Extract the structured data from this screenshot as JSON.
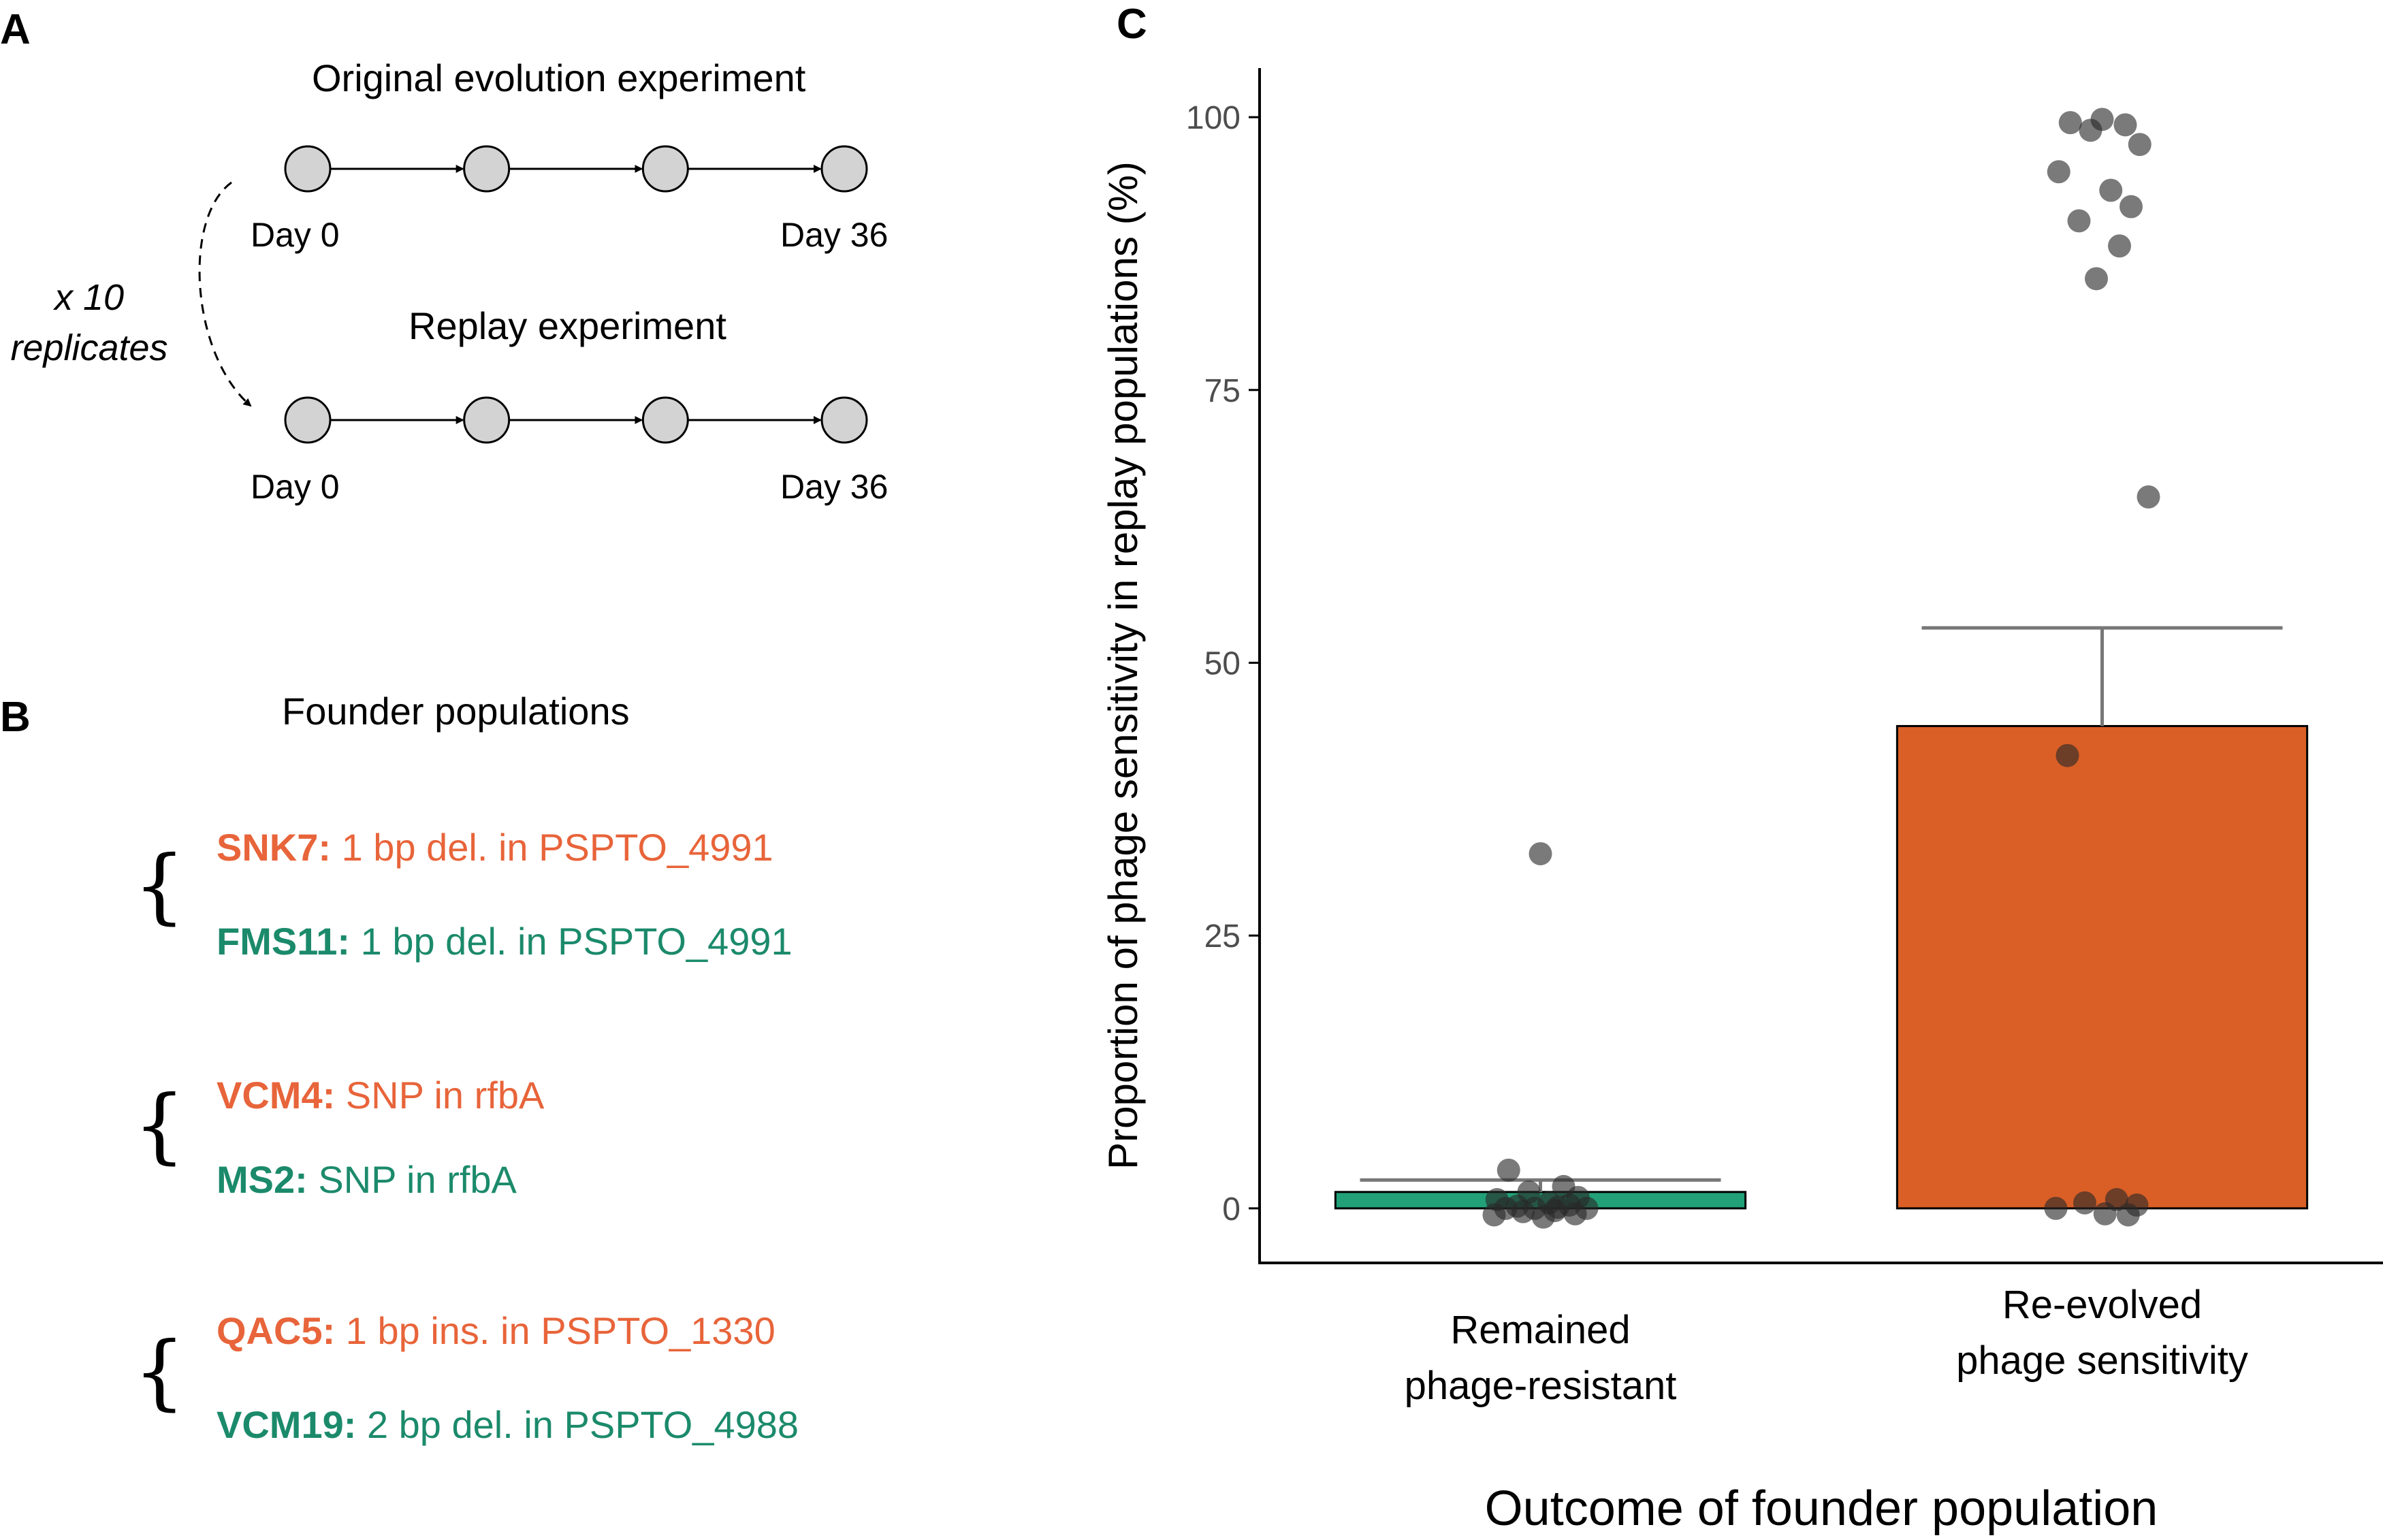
{
  "panels": {
    "a": {
      "letter": "A",
      "original_title": "Original evolution experiment",
      "replay_title": "Replay experiment",
      "replicates_line1": "x 10",
      "replicates_line2": "replicates",
      "start_label": "Day 0",
      "end_label": "Day 36",
      "timepoints_per_experiment": 4
    },
    "b": {
      "letter": "B",
      "title": "Founder populations",
      "groups": [
        [
          {
            "name": "SNK7:",
            "desc": "1 bp del. in PSPTO_4991",
            "color": "#e8643a"
          },
          {
            "name": "FMS11:",
            "desc": "1 bp del. in PSPTO_4991",
            "color": "#1b8a6b"
          }
        ],
        [
          {
            "name": "VCM4:",
            "desc": "SNP in rfbA",
            "color": "#e8643a"
          },
          {
            "name": "MS2:",
            "desc": "SNP in rfbA",
            "color": "#1b8a6b"
          }
        ],
        [
          {
            "name": "QAC5:",
            "desc": "1 bp ins. in PSPTO_1330",
            "color": "#e8643a"
          },
          {
            "name": "VCM19:",
            "desc": "2 bp del. in PSPTO_4988",
            "color": "#1b8a6b"
          }
        ]
      ]
    },
    "c": {
      "letter": "C"
    }
  },
  "chart_data": {
    "type": "bar",
    "categories": [
      "Remained\nphage-resistant",
      "Re-evolved\nphage sensitivity"
    ],
    "values": [
      1.5,
      44.2
    ],
    "error_upper": [
      2.6,
      53.2
    ],
    "bar_colors": [
      "#22a078",
      "#d95f26"
    ],
    "xlabel": "Outcome of founder population",
    "ylabel": "Proportion of phage sensitivity in replay populations (%)",
    "ylim": [
      -5,
      104.5
    ],
    "yticks": [
      0,
      25,
      50,
      75,
      100
    ],
    "grid": false,
    "points": [
      {
        "group": 0,
        "values": [
          32.5,
          3.5,
          2.0,
          1.5,
          1.0,
          0.8,
          0.5,
          0.3,
          0.2,
          0.1,
          0.0,
          0.0,
          0.0,
          -0.2,
          -0.3,
          -0.5,
          -0.6,
          -0.8
        ]
      },
      {
        "group": 1,
        "values": [
          99.8,
          99.5,
          99.3,
          98.8,
          97.5,
          95.0,
          93.3,
          91.8,
          90.5,
          88.2,
          85.2,
          65.2,
          41.5,
          0.8,
          0.5,
          0.3,
          0.0,
          -0.5,
          -0.6
        ]
      }
    ]
  }
}
